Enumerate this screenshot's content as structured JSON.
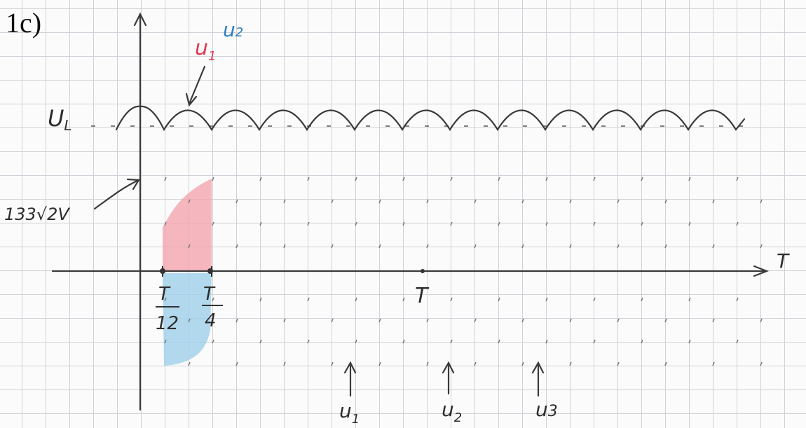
{
  "title": "1c)",
  "top_label": {
    "first": {
      "base": "u",
      "sub": "1"
    },
    "second": {
      "base": "u",
      "sub": "2"
    }
  },
  "level_label": {
    "base": "U",
    "sub": "L"
  },
  "amplitude_label": "133√2V",
  "axis_label": "T",
  "ticks": [
    {
      "numerator": "T",
      "denominator": "12"
    },
    {
      "numerator": "T",
      "denominator": "4"
    },
    {
      "numerator": "T"
    }
  ],
  "bottom_labels": [
    {
      "base": "u",
      "sub": "1"
    },
    {
      "base": "u",
      "sub": "2"
    },
    {
      "base": "u",
      "sub": "3"
    }
  ]
}
